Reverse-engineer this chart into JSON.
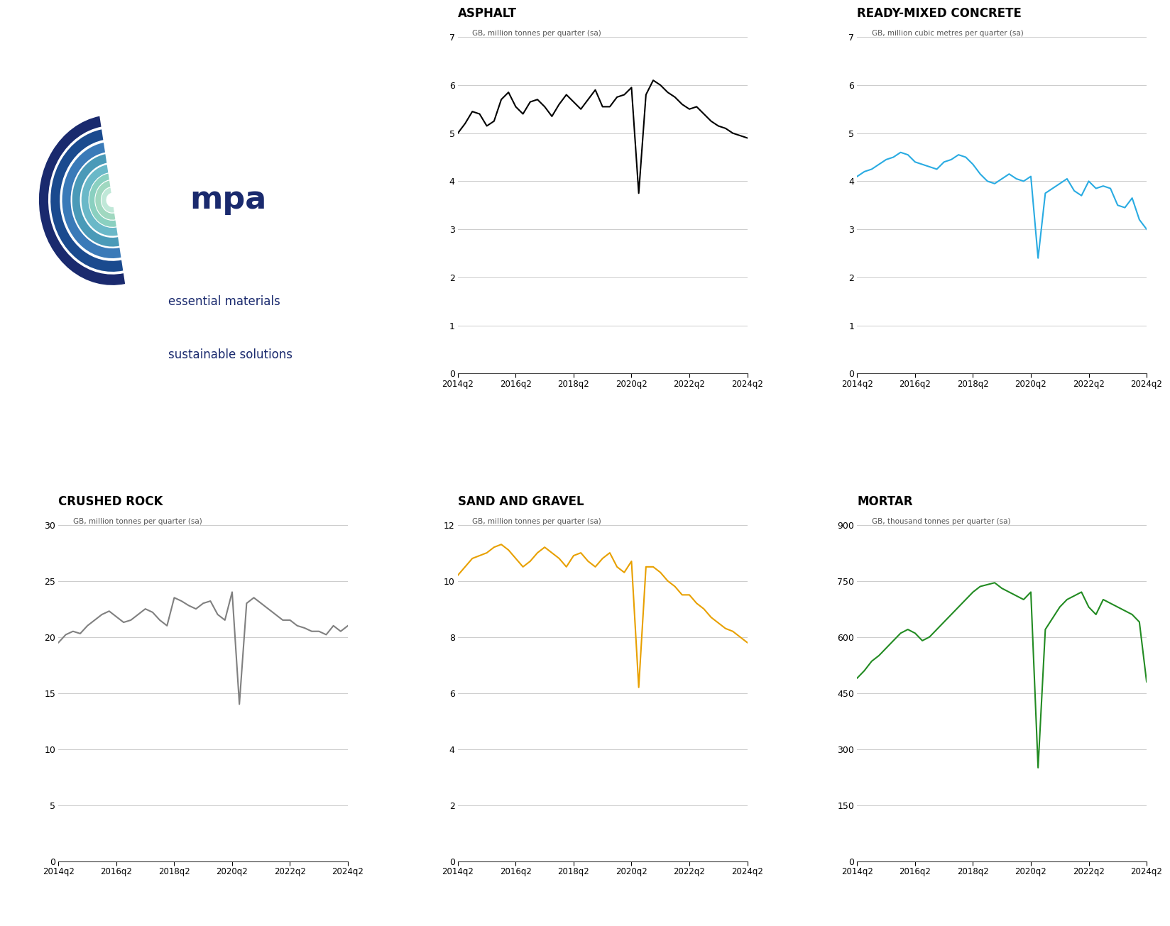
{
  "asphalt": {
    "title": "ASPHALT",
    "ylabel": "GB, million tonnes per quarter (sa)",
    "color": "#000000",
    "ylim": [
      0,
      7
    ],
    "yticks": [
      0,
      1,
      2,
      3,
      4,
      5,
      6,
      7
    ],
    "values": [
      5.0,
      5.2,
      5.45,
      5.4,
      5.15,
      5.25,
      5.7,
      5.85,
      5.55,
      5.4,
      5.65,
      5.7,
      5.55,
      5.35,
      5.6,
      5.8,
      5.65,
      5.5,
      5.7,
      5.9,
      5.55,
      5.55,
      5.75,
      5.8,
      5.95,
      3.75,
      5.8,
      6.1,
      6.0,
      5.85,
      5.75,
      5.6,
      5.5,
      5.55,
      5.4,
      5.25,
      5.15,
      5.1,
      5.0,
      4.95,
      4.9
    ]
  },
  "concrete": {
    "title": "READY-MIXED CONCRETE",
    "ylabel": "GB, million cubic metres per quarter (sa)",
    "color": "#29ABE2",
    "ylim": [
      0,
      7
    ],
    "yticks": [
      0,
      1,
      2,
      3,
      4,
      5,
      6,
      7
    ],
    "values": [
      4.1,
      4.2,
      4.25,
      4.35,
      4.45,
      4.5,
      4.6,
      4.55,
      4.4,
      4.35,
      4.3,
      4.25,
      4.4,
      4.45,
      4.55,
      4.5,
      4.35,
      4.15,
      4.0,
      3.95,
      4.05,
      4.15,
      4.05,
      4.0,
      4.1,
      2.4,
      3.75,
      3.85,
      3.95,
      4.05,
      3.8,
      3.7,
      4.0,
      3.85,
      3.9,
      3.85,
      3.5,
      3.45,
      3.65,
      3.2,
      3.0
    ]
  },
  "crushed_rock": {
    "title": "CRUSHED ROCK",
    "ylabel": "GB, million tonnes per quarter (sa)",
    "color": "#808080",
    "ylim": [
      0,
      30
    ],
    "yticks": [
      0,
      5,
      10,
      15,
      20,
      25,
      30
    ],
    "values": [
      19.5,
      20.2,
      20.5,
      20.3,
      21.0,
      21.5,
      22.0,
      22.3,
      21.8,
      21.3,
      21.5,
      22.0,
      22.5,
      22.2,
      21.5,
      21.0,
      23.5,
      23.2,
      22.8,
      22.5,
      23.0,
      23.2,
      22.0,
      21.5,
      24.0,
      14.0,
      23.0,
      23.5,
      23.0,
      22.5,
      22.0,
      21.5,
      21.5,
      21.0,
      20.8,
      20.5,
      20.5,
      20.2,
      21.0,
      20.5,
      21.0
    ]
  },
  "sand_gravel": {
    "title": "SAND AND GRAVEL",
    "ylabel": "GB, million tonnes per quarter (sa)",
    "color": "#E8A000",
    "ylim": [
      0,
      12
    ],
    "yticks": [
      0,
      2,
      4,
      6,
      8,
      10,
      12
    ],
    "values": [
      10.2,
      10.5,
      10.8,
      10.9,
      11.0,
      11.2,
      11.3,
      11.1,
      10.8,
      10.5,
      10.7,
      11.0,
      11.2,
      11.0,
      10.8,
      10.5,
      10.9,
      11.0,
      10.7,
      10.5,
      10.8,
      11.0,
      10.5,
      10.3,
      10.7,
      6.2,
      10.5,
      10.5,
      10.3,
      10.0,
      9.8,
      9.5,
      9.5,
      9.2,
      9.0,
      8.7,
      8.5,
      8.3,
      8.2,
      8.0,
      7.8
    ]
  },
  "mortar": {
    "title": "MORTAR",
    "ylabel": "GB, thousand tonnes per quarter (sa)",
    "color": "#228B22",
    "ylim": [
      0,
      900
    ],
    "yticks": [
      0,
      150,
      300,
      450,
      600,
      750,
      900
    ],
    "values": [
      490,
      510,
      535,
      550,
      570,
      590,
      610,
      620,
      610,
      590,
      600,
      620,
      640,
      660,
      680,
      700,
      720,
      735,
      740,
      745,
      730,
      720,
      710,
      700,
      720,
      250,
      620,
      650,
      680,
      700,
      710,
      720,
      680,
      660,
      700,
      690,
      680,
      670,
      660,
      640,
      480
    ]
  },
  "x_labels": [
    "2014q2",
    "2016q2",
    "2018q2",
    "2020q2",
    "2022q2",
    "2024q2"
  ],
  "n_points": 41,
  "logo": {
    "arc_colors": [
      "#1a2a6e",
      "#1a4a8e",
      "#3a7ab8",
      "#4a9ab8",
      "#6ab8c8",
      "#8ad0c0",
      "#a0d8c0",
      "#c0e8d8"
    ],
    "arc_radii": [
      0.95,
      0.8,
      0.65,
      0.52,
      0.4,
      0.3,
      0.22,
      0.14
    ],
    "arc_width": [
      0.12,
      0.12,
      0.11,
      0.1,
      0.09,
      0.07,
      0.07,
      0.06
    ],
    "mpa_color": "#1a2a6e",
    "tagline_color": "#1a2a6e"
  }
}
